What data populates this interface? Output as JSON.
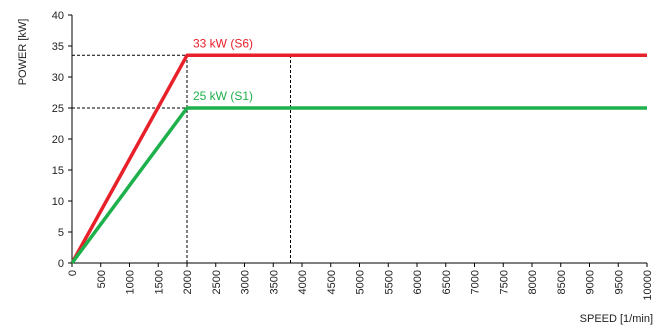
{
  "chart_data": {
    "type": "line",
    "title": "",
    "xlabel": "SPEED [1/min]",
    "ylabel": "POWER [kW]",
    "xlim": [
      0,
      10000
    ],
    "ylim": [
      0,
      40
    ],
    "x_ticks": [
      0,
      500,
      1000,
      1500,
      2000,
      2500,
      3000,
      3500,
      4000,
      4500,
      5000,
      5500,
      6000,
      6500,
      7000,
      7500,
      8000,
      8500,
      9000,
      9500,
      10000
    ],
    "y_ticks": [
      0,
      5,
      10,
      15,
      20,
      25,
      30,
      35,
      40
    ],
    "grid": false,
    "legend": "none",
    "series": [
      {
        "name": "33 kW (S6)",
        "color": "#e8202a",
        "points": [
          [
            0,
            0
          ],
          [
            2000,
            33.5
          ],
          [
            10000,
            33.5
          ]
        ]
      },
      {
        "name": "25 kW (S1)",
        "color": "#1db04b",
        "points": [
          [
            0,
            0
          ],
          [
            2000,
            25
          ],
          [
            10000,
            25
          ]
        ]
      }
    ],
    "reference_lines": {
      "color": "#000000",
      "horizontal": [
        {
          "y": 33.5,
          "x_from": 0,
          "x_to": 3800
        },
        {
          "y": 25,
          "x_from": 0,
          "x_to": 2000
        }
      ],
      "vertical": [
        {
          "x": 2000,
          "y_from": 0,
          "y_to": 33.5
        },
        {
          "x": 3800,
          "y_from": 0,
          "y_to": 33.5
        }
      ]
    }
  }
}
